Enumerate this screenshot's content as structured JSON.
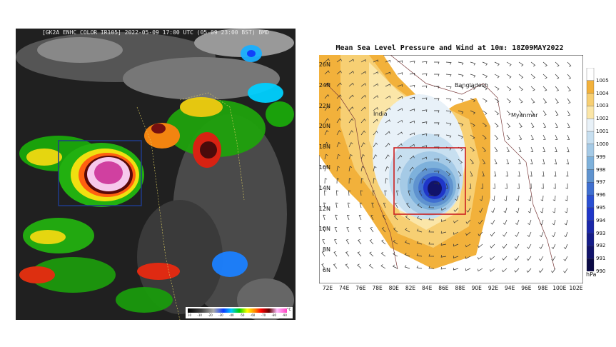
{
  "satellite": {
    "title": "[GK2A ENHC COLOR IR105] 2022-05-09 17:00 UTC (05-09 23:00 BST) BMD",
    "colorbar": {
      "ticks": [
        "10",
        "-10",
        "-20",
        "-30",
        "-40",
        "-50",
        "-60",
        "-70",
        "-80",
        "-90"
      ],
      "unit": "°C"
    },
    "highlight_box_color": "#1f3a8a"
  },
  "analysis": {
    "title": "Mean Sea Level Pressure and Wind at 10m: 18Z09MAY2022",
    "latitudes": [
      "26N",
      "24N",
      "22N",
      "20N",
      "18N",
      "16N",
      "14N",
      "12N",
      "10N",
      "8N",
      "6N"
    ],
    "longitudes": [
      "72E",
      "74E",
      "76E",
      "78E",
      "80E",
      "82E",
      "84E",
      "86E",
      "88E",
      "90E",
      "92E",
      "94E",
      "96E",
      "98E",
      "100E",
      "102E"
    ],
    "regions": {
      "india": "India",
      "bangladesh": "Bangladesh",
      "myanmar": "Myanmar"
    },
    "legend": {
      "levels": [
        "1005",
        "1004",
        "1003",
        "1002",
        "1001",
        "1000",
        "999",
        "998",
        "997",
        "996",
        "995",
        "994",
        "993",
        "992",
        "991",
        "990"
      ],
      "colors": [
        "#ffffff",
        "#f2b13b",
        "#f7cf73",
        "#fbe6a8",
        "#e8f1f8",
        "#c7dff0",
        "#a5cae6",
        "#7eb1db",
        "#5f93cf",
        "#3f6fd0",
        "#2a4fd2",
        "#1f36c8",
        "#1a27a8",
        "#151c88",
        "#11136a",
        "#0b0a45"
      ],
      "unit": "hPa"
    },
    "highlight_box_color": "#cc1f1f"
  }
}
